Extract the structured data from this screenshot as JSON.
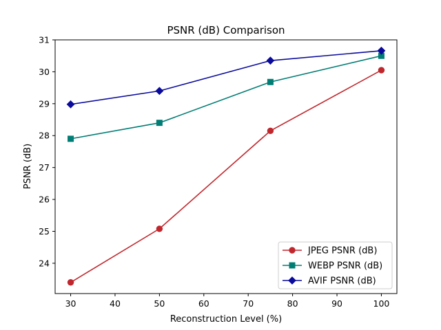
{
  "chart_data": {
    "type": "line",
    "title": "PSNR (dB) Comparison",
    "xlabel": "Reconstruction Level (%)",
    "ylabel": "PSNR (dB)",
    "x": [
      30,
      50,
      75,
      100
    ],
    "xlim": [
      26.5,
      103.5
    ],
    "ylim": [
      23.05,
      31.0
    ],
    "xticks": [
      30,
      40,
      50,
      60,
      70,
      80,
      90,
      100
    ],
    "yticks": [
      24,
      25,
      26,
      27,
      28,
      29,
      30,
      31
    ],
    "grid": false,
    "legend_position": "bottom-right",
    "series": [
      {
        "name": "JPEG PSNR (dB)",
        "values": [
          23.4,
          25.08,
          28.15,
          30.05
        ],
        "color": "#c0272d",
        "marker": "circle"
      },
      {
        "name": "WEBP PSNR (dB)",
        "values": [
          27.9,
          28.4,
          29.68,
          30.5
        ],
        "color": "#007d74",
        "marker": "square"
      },
      {
        "name": "AVIF PSNR (dB)",
        "values": [
          28.98,
          29.4,
          30.35,
          30.66
        ],
        "color": "#0a0a9c",
        "marker": "diamond"
      }
    ]
  }
}
